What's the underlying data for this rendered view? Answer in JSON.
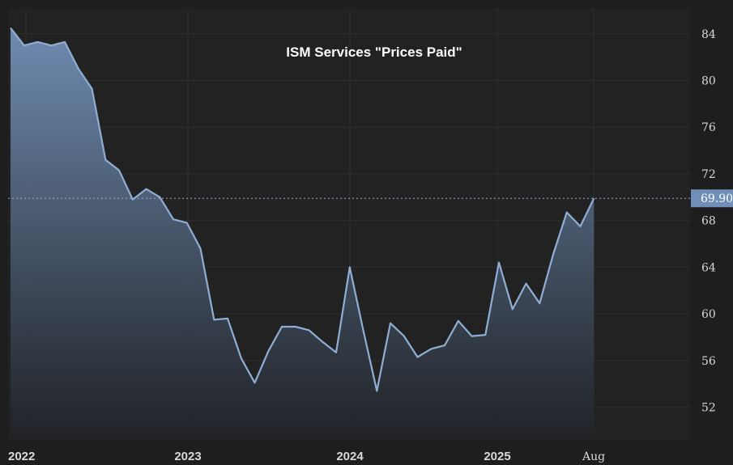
{
  "chart_data": {
    "type": "area",
    "title": "ISM Services \"Prices Paid\"",
    "xlabel": "",
    "ylabel": "",
    "x_tick_labels": [
      "2022",
      "2023",
      "2024",
      "2025",
      "Aug"
    ],
    "y_ticks": [
      52,
      56,
      60,
      64,
      68,
      72,
      76,
      80,
      84
    ],
    "ylim": [
      49.2,
      86.2
    ],
    "last_value_label": "69.90",
    "grid": true,
    "colors": {
      "line": "#8faed3",
      "fill_top": "#7391b8",
      "fill_bottom": "#202226",
      "background": "#1e1e1e",
      "plot_background": "#222222",
      "last_value_badge": "#6f8fb8"
    },
    "series": [
      {
        "values": [
          84.5,
          83.0,
          83.3,
          83.0,
          83.3,
          81.0,
          79.3,
          73.2,
          72.3,
          69.8,
          70.7,
          70.0,
          68.1,
          67.8,
          65.6,
          59.5,
          59.6,
          56.2,
          54.1,
          56.8,
          58.9,
          58.9,
          58.6,
          57.6,
          56.7,
          64.0,
          58.6,
          53.4,
          59.2,
          58.1,
          56.3,
          57.0,
          57.3,
          59.4,
          58.1,
          58.2,
          64.4,
          60.4,
          62.6,
          60.9,
          65.1,
          68.7,
          67.5,
          69.9
        ]
      }
    ]
  }
}
